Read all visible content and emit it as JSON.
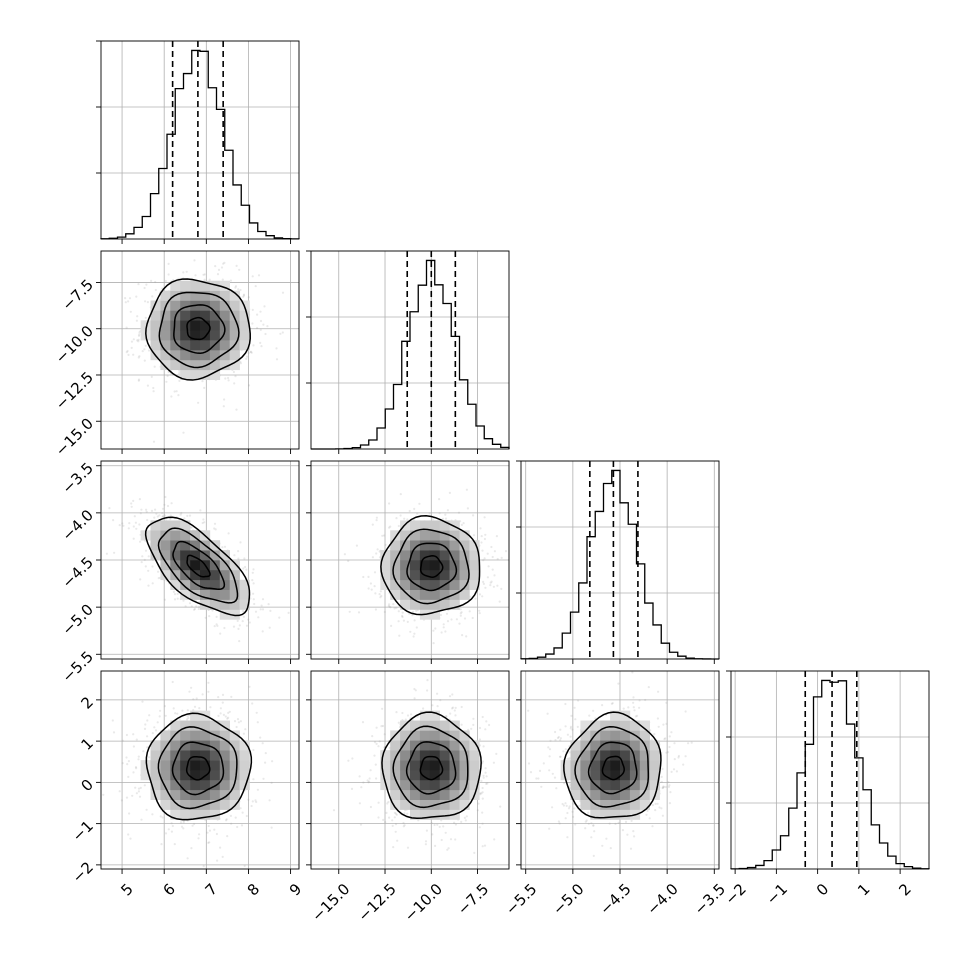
{
  "chart_data": {
    "type": "corner",
    "title": "",
    "grid": true,
    "parameters": [
      {
        "median": 6.8,
        "q16": 6.2,
        "q84": 7.4,
        "sigma": 0.6,
        "axis_range": [
          4.5,
          9.2
        ],
        "ticks": [
          5,
          6,
          7,
          8,
          9
        ],
        "tick_labels": [
          "5",
          "6",
          "7",
          "8",
          "9"
        ]
      },
      {
        "median": -10.0,
        "q16": -11.3,
        "q84": -8.7,
        "sigma": 1.3,
        "axis_range": [
          -16.5,
          -5.8
        ],
        "ticks": [
          -15.0,
          -12.5,
          -10.0,
          -7.5
        ],
        "tick_labels": [
          "−15.0",
          "−12.5",
          "−10.0",
          "−7.5"
        ]
      },
      {
        "median": -4.57,
        "q16": -4.82,
        "q84": -4.31,
        "sigma": 0.25,
        "axis_range": [
          -5.55,
          -3.45
        ],
        "ticks": [
          -5.5,
          -5.0,
          -4.5,
          -4.0,
          -3.5
        ],
        "tick_labels": [
          "−5.5",
          "−5.0",
          "−4.5",
          "−4.0",
          "−3.5"
        ]
      },
      {
        "median": 0.35,
        "q16": -0.3,
        "q84": 0.95,
        "sigma": 0.62,
        "axis_range": [
          -2.1,
          2.7
        ],
        "ticks": [
          -2,
          -1,
          0,
          1,
          2
        ],
        "tick_labels": [
          "−2",
          "−1",
          "0",
          "1",
          "2"
        ]
      }
    ],
    "correlations": [
      {
        "x": 0,
        "y": 1,
        "rho": 0.0
      },
      {
        "x": 0,
        "y": 2,
        "rho": -0.65
      },
      {
        "x": 1,
        "y": 2,
        "rho": 0.0
      },
      {
        "x": 0,
        "y": 3,
        "rho": 0.0
      },
      {
        "x": 1,
        "y": 3,
        "rho": 0.0
      },
      {
        "x": 2,
        "y": 3,
        "rho": 0.05
      }
    ],
    "colors": {
      "line": "#000000",
      "points": "#9a9a9a",
      "density_dark": "#222222",
      "grid": "#b0b0b0"
    }
  }
}
